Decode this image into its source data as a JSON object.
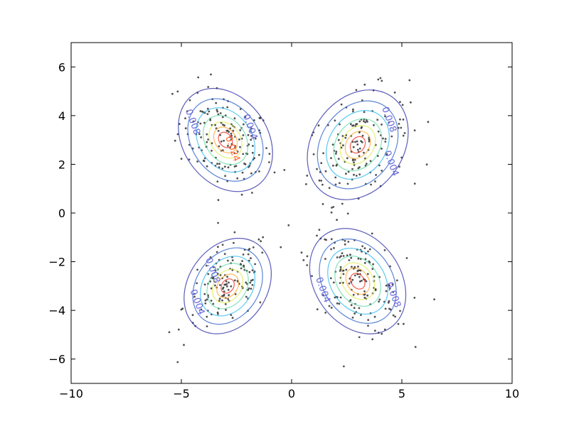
{
  "chart_data": {
    "type": "scatter",
    "title": "",
    "xlabel": "",
    "ylabel": "",
    "xlim": [
      -10,
      10
    ],
    "ylim": [
      -7,
      7
    ],
    "x_ticks": [
      -10,
      -5,
      0,
      5,
      10
    ],
    "x_tick_labels": [
      "−10",
      "−5",
      "0",
      "5",
      "10"
    ],
    "y_ticks": [
      -6,
      -4,
      -2,
      0,
      2,
      4,
      6
    ],
    "y_tick_labels": [
      "−6",
      "−4",
      "−2",
      "0",
      "2",
      "4",
      "6"
    ],
    "grid": false,
    "legend": "none",
    "point_color": "#333333",
    "clusters": [
      {
        "cx": -3.0,
        "cy": 3.0,
        "sx": 1.05,
        "sy": 1.05,
        "rho": -0.35,
        "n": 160,
        "contour_labels": [
          {
            "text": "0.008",
            "at": [
              -4.6,
              3.7
            ],
            "color": "#6666dd"
          },
          {
            "text": "0.004",
            "at": [
              -2.0,
              3.5
            ],
            "color": "#6666dd"
          },
          {
            "text": "0.024",
            "at": [
              -2.8,
              2.6
            ],
            "color": "#ff6633"
          }
        ]
      },
      {
        "cx": 3.0,
        "cy": 2.8,
        "sx": 1.15,
        "sy": 1.1,
        "rho": 0.4,
        "n": 160,
        "contour_labels": [
          {
            "text": "0.004",
            "at": [
              4.4,
              2.0
            ],
            "color": "#6666dd"
          },
          {
            "text": "0.008",
            "at": [
              4.3,
              3.8
            ],
            "color": "#6666dd"
          }
        ]
      },
      {
        "cx": -2.9,
        "cy": -3.0,
        "sx": 1.0,
        "sy": 0.95,
        "rho": 0.45,
        "n": 140,
        "contour_labels": [
          {
            "text": "0.008",
            "at": [
              -3.7,
              -2.4
            ],
            "color": "#6666dd"
          },
          {
            "text": "0.004",
            "at": [
              -4.4,
              -3.7
            ],
            "color": "#6666dd"
          }
        ]
      },
      {
        "cx": 3.0,
        "cy": -2.8,
        "sx": 1.1,
        "sy": 1.05,
        "rho": -0.45,
        "n": 160,
        "contour_labels": [
          {
            "text": "0.004",
            "at": [
              1.3,
              -3.2
            ],
            "color": "#6666dd"
          },
          {
            "text": "0.008",
            "at": [
              4.5,
              -3.4
            ],
            "color": "#6666dd"
          }
        ]
      }
    ],
    "contour_levels": [
      {
        "level": 0.004,
        "radius": 2.0,
        "color": "#3333aa"
      },
      {
        "level": 0.008,
        "radius": 1.6,
        "color": "#3366cc"
      },
      {
        "level": 0.012,
        "radius": 1.25,
        "color": "#33bbee"
      },
      {
        "level": 0.016,
        "radius": 0.95,
        "color": "#66ddaa"
      },
      {
        "level": 0.02,
        "radius": 0.7,
        "color": "#ddee55"
      },
      {
        "level": 0.024,
        "radius": 0.5,
        "color": "#ffaa33"
      },
      {
        "level": 0.028,
        "radius": 0.3,
        "color": "#ee3322"
      }
    ]
  }
}
